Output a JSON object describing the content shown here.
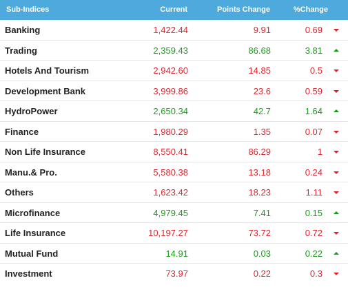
{
  "header": {
    "name": "Sub-Indices",
    "current": "Current",
    "points_change": "Points Change",
    "pct_change": "%Change"
  },
  "colors": {
    "header_bg": "#4ea9dc",
    "negative": "#e0262f",
    "positive": "#1e9a1e"
  },
  "rows": [
    {
      "name": "Banking",
      "current": "1,422.44",
      "points": "9.91",
      "pct": "0.69",
      "dir": "down"
    },
    {
      "name": "Trading",
      "current": "2,359.43",
      "points": "86.68",
      "pct": "3.81",
      "dir": "up"
    },
    {
      "name": "Hotels And Tourism",
      "current": "2,942.60",
      "points": "14.85",
      "pct": "0.5",
      "dir": "down"
    },
    {
      "name": "Development Bank",
      "current": "3,999.86",
      "points": "23.6",
      "pct": "0.59",
      "dir": "down"
    },
    {
      "name": "HydroPower",
      "current": "2,650.34",
      "points": "42.7",
      "pct": "1.64",
      "dir": "up"
    },
    {
      "name": "Finance",
      "current": "1,980.29",
      "points": "1.35",
      "pct": "0.07",
      "dir": "down"
    },
    {
      "name": "Non Life Insurance",
      "current": "8,550.41",
      "points": "86.29",
      "pct": "1",
      "dir": "down"
    },
    {
      "name": "Manu.& Pro.",
      "current": "5,580.38",
      "points": "13.18",
      "pct": "0.24",
      "dir": "down"
    },
    {
      "name": "Others",
      "current": "1,623.42",
      "points": "18.23",
      "pct": "1.11",
      "dir": "down"
    },
    {
      "name": "Microfinance",
      "current": "4,979.45",
      "points": "7.41",
      "pct": "0.15",
      "dir": "up"
    },
    {
      "name": "Life Insurance",
      "current": "10,197.27",
      "points": "73.72",
      "pct": "0.72",
      "dir": "down"
    },
    {
      "name": "Mutual Fund",
      "current": "14.91",
      "points": "0.03",
      "pct": "0.22",
      "dir": "up"
    },
    {
      "name": "Investment",
      "current": "73.97",
      "points": "0.22",
      "pct": "0.3",
      "dir": "down"
    }
  ]
}
